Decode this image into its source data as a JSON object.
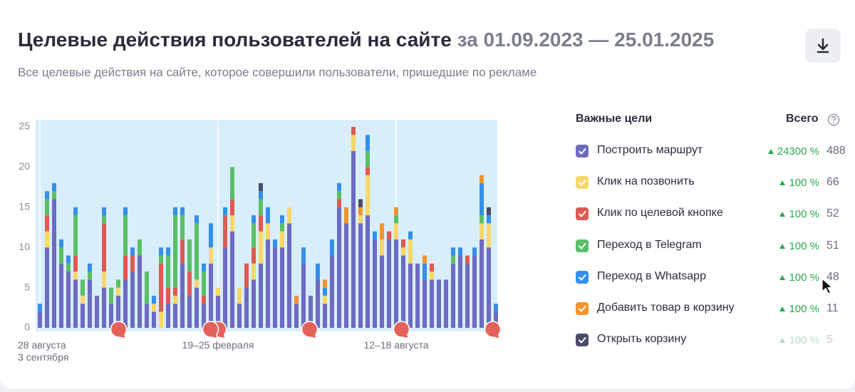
{
  "header": {
    "title": "Целевые действия пользователей на сайте",
    "period": "за 01.09.2023 — 25.01.2025",
    "subtitle": "Все целевые действия на сайте, которое совершили пользователи, пришедшие по рекламе"
  },
  "legend": {
    "title": "Важные цели",
    "total_title": "Всего",
    "goals": [
      {
        "change": "24300 %",
        "total": 488
      },
      {
        "change": "100 %",
        "total": 66
      },
      {
        "change": "100 %",
        "total": 52
      },
      {
        "change": "100 %",
        "total": 51
      },
      {
        "change": "100 %",
        "total": 48
      },
      {
        "change": "100 %",
        "total": 11
      },
      {
        "change": "100 %",
        "total": 5
      }
    ]
  },
  "chart_data": {
    "type": "stacked_bar",
    "categories": [
      "28 августа\n3 сентября",
      null,
      null,
      null,
      null,
      null,
      null,
      null,
      null,
      null,
      null,
      null,
      null,
      null,
      null,
      null,
      null,
      null,
      null,
      null,
      null,
      null,
      null,
      null,
      null,
      "19–25 февраля",
      null,
      null,
      null,
      null,
      null,
      null,
      null,
      null,
      null,
      null,
      null,
      null,
      null,
      null,
      null,
      null,
      null,
      null,
      null,
      null,
      null,
      null,
      null,
      null,
      "12–18 августа",
      null,
      null,
      null,
      null,
      null,
      null,
      null,
      null,
      null,
      null,
      null,
      null,
      null,
      null
    ],
    "ylim": [
      0,
      25
    ],
    "yticks": [
      0,
      5,
      10,
      15,
      20,
      25
    ],
    "series": [
      {
        "name": "Построить маршрут",
        "color": "#6d6bc2",
        "values": [
          2,
          10,
          16,
          8,
          7,
          6,
          3,
          6,
          4,
          5,
          3,
          4,
          6,
          7,
          9,
          3,
          2,
          0,
          3,
          3,
          8,
          4,
          5,
          3,
          8,
          4,
          10,
          12,
          3,
          5,
          6,
          8,
          11,
          10,
          10,
          13,
          3,
          8,
          4,
          6,
          3,
          9,
          15,
          13,
          22,
          13,
          14,
          11,
          9,
          11,
          11,
          9,
          8,
          8,
          6,
          6,
          6,
          6,
          8,
          9,
          8,
          9,
          11,
          10,
          2
        ]
      },
      {
        "name": "Клик на позвонить",
        "color": "#f7d768",
        "values": [
          0,
          2,
          0,
          0,
          0,
          1,
          1,
          0,
          0,
          2,
          0,
          1,
          0,
          0,
          0,
          0,
          1,
          2,
          0,
          1,
          0,
          0,
          1,
          0,
          2,
          1,
          0,
          2,
          2,
          0,
          2,
          4,
          2,
          0,
          2,
          2,
          0,
          0,
          0,
          0,
          1,
          0,
          0,
          0,
          2,
          1,
          5,
          0,
          2,
          0,
          2,
          1,
          3,
          0,
          0,
          1,
          0,
          0,
          0,
          0,
          0,
          0,
          2,
          3,
          0
        ]
      },
      {
        "name": "Клик по целевой кнопке",
        "color": "#df5a50",
        "values": [
          0,
          2,
          0,
          0,
          0,
          2,
          0,
          0,
          0,
          6,
          0,
          0,
          3,
          2,
          0,
          0,
          0,
          6,
          2,
          1,
          3,
          3,
          0,
          1,
          0,
          0,
          4,
          2,
          0,
          3,
          2,
          2,
          0,
          0,
          0,
          0,
          0,
          0,
          0,
          0,
          0,
          0,
          1,
          0,
          1,
          0,
          1,
          0,
          0,
          1,
          0,
          1,
          0,
          0,
          0,
          1,
          0,
          0,
          0,
          0,
          1,
          0,
          0,
          0,
          0
        ]
      },
      {
        "name": "Переход в Telegram",
        "color": "#5bbf67",
        "values": [
          0,
          2,
          1,
          2,
          1,
          5,
          2,
          1,
          0,
          1,
          2,
          1,
          5,
          0,
          2,
          4,
          0,
          1,
          4,
          9,
          3,
          4,
          7,
          3,
          0,
          0,
          0,
          4,
          0,
          0,
          3,
          2,
          0,
          0,
          1,
          0,
          0,
          0,
          0,
          0,
          0,
          0,
          1,
          0,
          0,
          0,
          2,
          0,
          0,
          0,
          1,
          0,
          0,
          0,
          0,
          0,
          0,
          0,
          1,
          0,
          0,
          0,
          1,
          0,
          0
        ]
      },
      {
        "name": "Переход в Whatsapp",
        "color": "#3390ea",
        "values": [
          1,
          1,
          1,
          1,
          1,
          1,
          0,
          1,
          0,
          1,
          0,
          0,
          1,
          1,
          0,
          0,
          1,
          1,
          1,
          1,
          1,
          0,
          1,
          1,
          3,
          0,
          1,
          0,
          0,
          0,
          1,
          1,
          2,
          1,
          1,
          0,
          0,
          2,
          0,
          2,
          1,
          2,
          1,
          0,
          0,
          0,
          2,
          1,
          0,
          0,
          0,
          0,
          1,
          0,
          2,
          0,
          0,
          0,
          1,
          1,
          0,
          1,
          4,
          1,
          1
        ]
      },
      {
        "name": "Добавить товар в корзину",
        "color": "#f5932c",
        "values": [
          0,
          0,
          0,
          0,
          0,
          0,
          0,
          0,
          0,
          0,
          0,
          0,
          0,
          0,
          0,
          0,
          0,
          0,
          0,
          0,
          0,
          0,
          0,
          0,
          0,
          0,
          0,
          0,
          0,
          0,
          0,
          0,
          0,
          0,
          0,
          0,
          1,
          0,
          0,
          0,
          1,
          0,
          0,
          2,
          0,
          1,
          0,
          0,
          2,
          0,
          1,
          0,
          0,
          0,
          1,
          0,
          0,
          0,
          0,
          0,
          0,
          0,
          1,
          0,
          0
        ]
      },
      {
        "name": "Открыть корзину",
        "color": "#494d68",
        "values": [
          0,
          0,
          0,
          0,
          0,
          0,
          0,
          0,
          0,
          0,
          0,
          0,
          0,
          0,
          0,
          0,
          0,
          0,
          0,
          0,
          0,
          0,
          0,
          0,
          0,
          0,
          0,
          0,
          0,
          0,
          0,
          1,
          0,
          0,
          0,
          0,
          0,
          0,
          0,
          0,
          0,
          0,
          0,
          0,
          0,
          1,
          0,
          0,
          0,
          0,
          0,
          0,
          0,
          0,
          0,
          0,
          0,
          0,
          0,
          0,
          0,
          0,
          0,
          1,
          0
        ]
      }
    ]
  }
}
